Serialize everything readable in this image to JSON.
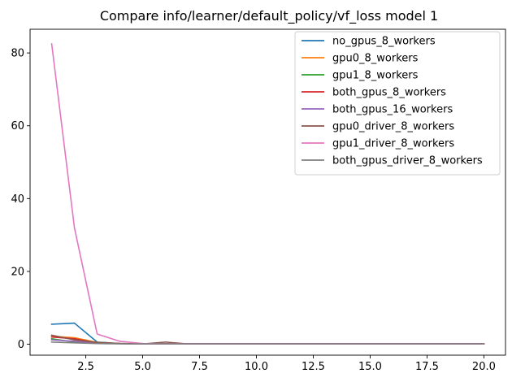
{
  "chart_data": {
    "type": "line",
    "title": "Compare info/learner/default_policy/vf_loss model 1",
    "xlabel": "",
    "ylabel": "",
    "xlim": [
      0.05,
      20.95
    ],
    "ylim": [
      -3.0,
      86.5
    ],
    "xticks": [
      2.5,
      5.0,
      7.5,
      10.0,
      12.5,
      15.0,
      17.5,
      20.0
    ],
    "xtick_labels": [
      "2.5",
      "5.0",
      "7.5",
      "10.0",
      "12.5",
      "15.0",
      "17.5",
      "20.0"
    ],
    "yticks": [
      0,
      20,
      40,
      60,
      80
    ],
    "ytick_labels": [
      "0",
      "20",
      "40",
      "60",
      "80"
    ],
    "grid": false,
    "legend_position": "top-right",
    "x": [
      1,
      2,
      3,
      4,
      5,
      6,
      7,
      8,
      9,
      10,
      11,
      12,
      13,
      14,
      15,
      16,
      17,
      18,
      19,
      20
    ],
    "series": [
      {
        "name": "no_gpus_8_workers",
        "color": "#1f77b4",
        "values": [
          5.5,
          5.8,
          0.6,
          0.2,
          0.1,
          0.1,
          0.1,
          0.1,
          0.1,
          0.1,
          0.1,
          0.1,
          0.1,
          0.1,
          0.1,
          0.1,
          0.1,
          0.1,
          0.1,
          0.1
        ]
      },
      {
        "name": "gpu0_8_workers",
        "color": "#ff7f0e",
        "values": [
          2.2,
          1.8,
          0.5,
          0.2,
          0.1,
          0.1,
          0.1,
          0.1,
          0.1,
          0.1,
          0.1,
          0.1,
          0.1,
          0.1,
          0.1,
          0.1,
          0.1,
          0.1,
          0.1,
          0.1
        ]
      },
      {
        "name": "gpu1_8_workers",
        "color": "#2ca02c",
        "values": [
          1.5,
          0.6,
          0.3,
          0.2,
          0.1,
          0.1,
          0.1,
          0.1,
          0.1,
          0.1,
          0.1,
          0.1,
          0.1,
          0.1,
          0.1,
          0.1,
          0.1,
          0.1,
          0.1,
          0.1
        ]
      },
      {
        "name": "both_gpus_8_workers",
        "color": "#d62728",
        "values": [
          2.0,
          1.5,
          0.4,
          0.2,
          0.1,
          0.1,
          0.1,
          0.1,
          0.1,
          0.1,
          0.1,
          0.1,
          0.1,
          0.1,
          0.1,
          0.1,
          0.1,
          0.1,
          0.1,
          0.1
        ]
      },
      {
        "name": "both_gpus_16_workers",
        "color": "#9467bd",
        "values": [
          1.2,
          0.8,
          0.3,
          0.2,
          0.1,
          0.1,
          0.1,
          0.1,
          0.1,
          0.1,
          0.1,
          0.1,
          0.1,
          0.1,
          0.1,
          0.1,
          0.1,
          0.1,
          0.1,
          0.1
        ]
      },
      {
        "name": "gpu0_driver_8_workers",
        "color": "#8c564b",
        "values": [
          2.5,
          1.2,
          0.5,
          0.2,
          0.1,
          0.6,
          0.1,
          0.1,
          0.1,
          0.1,
          0.1,
          0.1,
          0.1,
          0.1,
          0.1,
          0.1,
          0.1,
          0.1,
          0.1,
          0.1
        ]
      },
      {
        "name": "gpu1_driver_8_workers",
        "color": "#e377c2",
        "values": [
          82.5,
          32.0,
          2.8,
          0.8,
          0.2,
          0.1,
          0.1,
          0.1,
          0.1,
          0.1,
          0.1,
          0.1,
          0.1,
          0.1,
          0.1,
          0.1,
          0.1,
          0.1,
          0.1,
          0.1
        ]
      },
      {
        "name": "both_gpus_driver_8_workers",
        "color": "#7f7f7f",
        "values": [
          0.6,
          0.4,
          0.2,
          0.1,
          0.1,
          0.1,
          0.1,
          0.1,
          0.1,
          0.1,
          0.1,
          0.1,
          0.1,
          0.1,
          0.1,
          0.1,
          0.1,
          0.1,
          0.1,
          0.1
        ]
      }
    ]
  }
}
